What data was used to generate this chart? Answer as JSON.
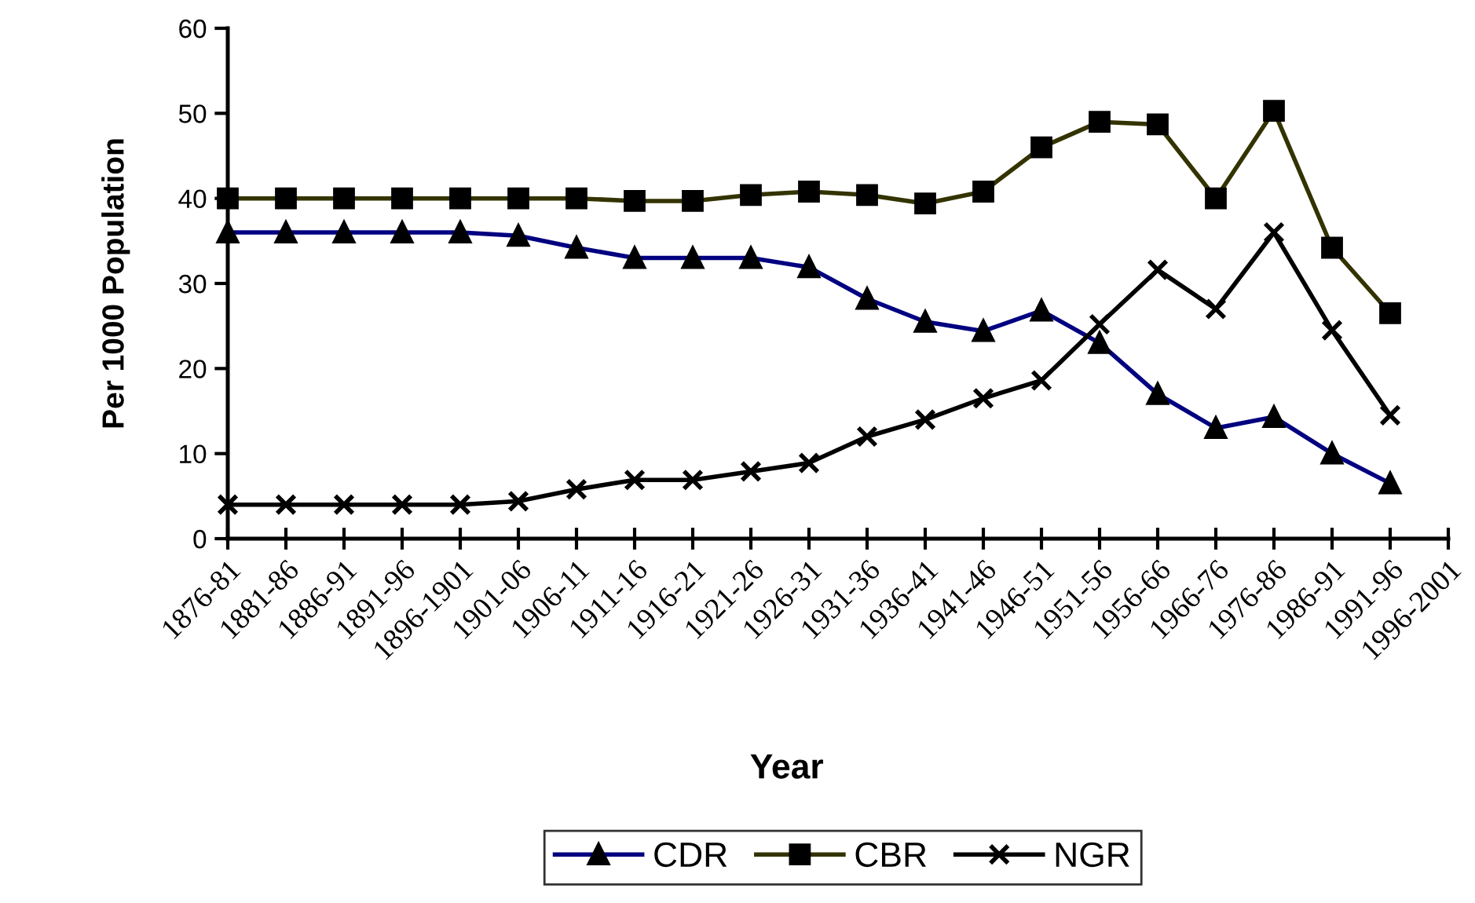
{
  "chart_data": {
    "type": "line",
    "xlabel": "Year",
    "ylabel": "Per 1000 Population",
    "categories": [
      "1876-81",
      "1881-86",
      "1886-91",
      "1891-96",
      "1896-1901",
      "1901-06",
      "1906-11",
      "1911-16",
      "1916-21",
      "1921-26",
      "1926-31",
      "1931-36",
      "1936-41",
      "1941-46",
      "1946-51",
      "1951-56",
      "1956-66",
      "1966-76",
      "1976-86",
      "1986-91",
      "1991-96",
      "1996-2001"
    ],
    "series": [
      {
        "name": "CDR",
        "color": "#000080",
        "marker": "triangle",
        "values": [
          36,
          36,
          36,
          36,
          36,
          35.6,
          34.2,
          33,
          33,
          33,
          31.9,
          28.2,
          25.5,
          24.4,
          26.8,
          23,
          17,
          13,
          14.3,
          10,
          6.5,
          null
        ]
      },
      {
        "name": "CBR",
        "color": "#333300",
        "marker": "square",
        "values": [
          40,
          40,
          40,
          40,
          40,
          40,
          40,
          39.7,
          39.7,
          40.4,
          40.8,
          40.4,
          39.4,
          40.8,
          46,
          49,
          48.7,
          40,
          50.3,
          34.2,
          26.5,
          null
        ]
      },
      {
        "name": "NGR",
        "color": "#000000",
        "marker": "cross",
        "values": [
          4,
          4,
          4,
          4,
          4,
          4.4,
          5.8,
          6.9,
          6.9,
          7.9,
          8.9,
          12,
          14,
          16.5,
          18.6,
          25.2,
          31.6,
          27,
          36,
          24.5,
          14.5,
          null
        ]
      }
    ],
    "ylim": [
      0,
      60
    ],
    "yticks": [
      0,
      10,
      20,
      30,
      40,
      50,
      60
    ],
    "grid": false,
    "legend": "bottom"
  }
}
